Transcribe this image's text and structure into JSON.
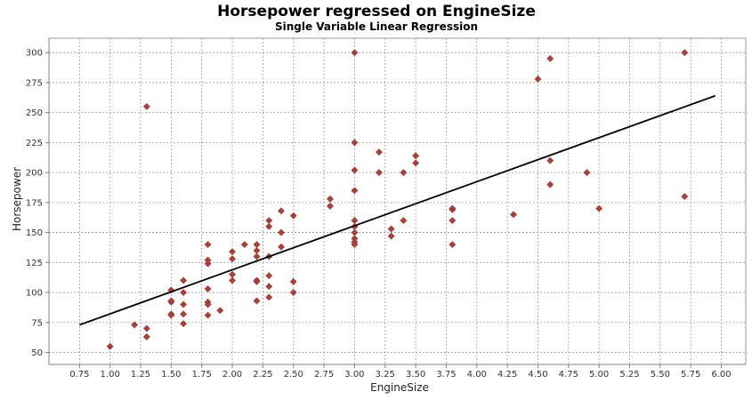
{
  "chart_data": {
    "type": "scatter",
    "title": "Horsepower regressed on EngineSize",
    "subtitle": "Single Variable Linear Regression",
    "xlabel": "EngineSize",
    "ylabel": "Horsepower",
    "xlim": [
      0.5,
      6.2
    ],
    "ylim": [
      40,
      312
    ],
    "xticks": [
      0.75,
      1.0,
      1.25,
      1.5,
      1.75,
      2.0,
      2.25,
      2.5,
      2.75,
      3.0,
      3.25,
      3.5,
      3.75,
      4.0,
      4.25,
      4.5,
      4.75,
      5.0,
      5.25,
      5.5,
      5.75,
      6.0
    ],
    "xtick_labels": [
      "0.75",
      "1.00",
      "1.25",
      "1.50",
      "1.75",
      "2.00",
      "2.25",
      "2.50",
      "2.75",
      "3.00",
      "3.25",
      "3.50",
      "3.75",
      "4.00",
      "4.25",
      "4.50",
      "4.75",
      "5.00",
      "5.25",
      "5.50",
      "5.75",
      "6.00"
    ],
    "yticks": [
      50,
      75,
      100,
      125,
      150,
      175,
      200,
      225,
      250,
      275,
      300
    ],
    "ytick_labels": [
      "50",
      "75",
      "100",
      "125",
      "150",
      "175",
      "200",
      "225",
      "250",
      "275",
      "300"
    ],
    "grid": true,
    "point_color": "#c0392b",
    "line_color": "#000000",
    "points": [
      [
        1.0,
        55
      ],
      [
        1.2,
        73
      ],
      [
        1.3,
        70
      ],
      [
        1.3,
        63
      ],
      [
        1.3,
        255
      ],
      [
        1.5,
        102
      ],
      [
        1.5,
        92
      ],
      [
        1.5,
        82
      ],
      [
        1.5,
        81
      ],
      [
        1.5,
        93
      ],
      [
        1.6,
        110
      ],
      [
        1.6,
        100
      ],
      [
        1.6,
        90
      ],
      [
        1.6,
        82
      ],
      [
        1.6,
        74
      ],
      [
        1.8,
        140
      ],
      [
        1.8,
        127
      ],
      [
        1.8,
        124
      ],
      [
        1.8,
        103
      ],
      [
        1.8,
        92
      ],
      [
        1.8,
        90
      ],
      [
        1.8,
        81
      ],
      [
        1.9,
        85
      ],
      [
        2.0,
        134
      ],
      [
        2.0,
        128
      ],
      [
        2.0,
        115
      ],
      [
        2.0,
        110
      ],
      [
        2.1,
        140
      ],
      [
        2.2,
        140
      ],
      [
        2.2,
        135
      ],
      [
        2.2,
        130
      ],
      [
        2.2,
        110
      ],
      [
        2.2,
        109
      ],
      [
        2.2,
        93
      ],
      [
        2.3,
        160
      ],
      [
        2.3,
        155
      ],
      [
        2.3,
        130
      ],
      [
        2.3,
        114
      ],
      [
        2.3,
        105
      ],
      [
        2.3,
        96
      ],
      [
        2.4,
        168
      ],
      [
        2.4,
        150
      ],
      [
        2.4,
        138
      ],
      [
        2.5,
        164
      ],
      [
        2.5,
        109
      ],
      [
        2.5,
        100
      ],
      [
        2.8,
        178
      ],
      [
        2.8,
        172
      ],
      [
        3.0,
        300
      ],
      [
        3.0,
        225
      ],
      [
        3.0,
        202
      ],
      [
        3.0,
        185
      ],
      [
        3.0,
        160
      ],
      [
        3.0,
        155
      ],
      [
        3.0,
        150
      ],
      [
        3.0,
        145
      ],
      [
        3.0,
        142
      ],
      [
        3.0,
        140
      ],
      [
        3.2,
        217
      ],
      [
        3.2,
        200
      ],
      [
        3.3,
        153
      ],
      [
        3.3,
        147
      ],
      [
        3.4,
        200
      ],
      [
        3.4,
        160
      ],
      [
        3.5,
        214
      ],
      [
        3.5,
        208
      ],
      [
        3.8,
        170
      ],
      [
        3.8,
        169
      ],
      [
        3.8,
        160
      ],
      [
        3.8,
        140
      ],
      [
        4.3,
        165
      ],
      [
        4.5,
        278
      ],
      [
        4.6,
        295
      ],
      [
        4.6,
        210
      ],
      [
        4.6,
        190
      ],
      [
        4.9,
        200
      ],
      [
        5.0,
        170
      ],
      [
        5.7,
        300
      ],
      [
        5.7,
        180
      ]
    ],
    "regression_line": {
      "x": [
        0.75,
        5.95
      ],
      "y": [
        73,
        264
      ]
    }
  }
}
